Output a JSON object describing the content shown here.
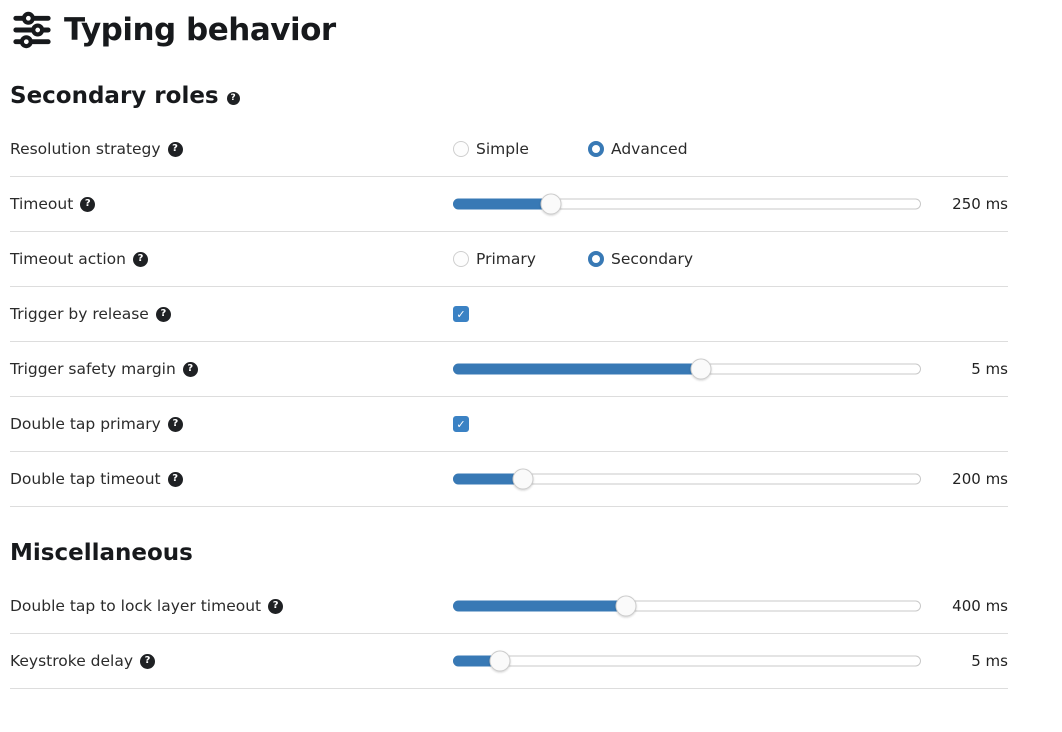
{
  "page": {
    "title": "Typing behavior"
  },
  "icons": {
    "help": "?",
    "checkmark": "✓",
    "title_icon": "sliders-icon"
  },
  "colors": {
    "accent_blue": "#3879b5",
    "badge_dark": "#1f2124",
    "divider": "#dddddd"
  },
  "sections": [
    {
      "title": "Secondary roles",
      "has_help": true,
      "rows": [
        {
          "type": "radio",
          "label": "Resolution strategy",
          "options": [
            {
              "label": "Simple",
              "selected": false
            },
            {
              "label": "Advanced",
              "selected": true
            }
          ]
        },
        {
          "type": "slider",
          "label": "Timeout",
          "value": "250 ms",
          "fill_percent": 21
        },
        {
          "type": "radio",
          "label": "Timeout action",
          "options": [
            {
              "label": "Primary",
              "selected": false
            },
            {
              "label": "Secondary",
              "selected": true
            }
          ]
        },
        {
          "type": "checkbox",
          "label": "Trigger by release",
          "checked": true
        },
        {
          "type": "slider",
          "label": "Trigger safety margin",
          "value": "5 ms",
          "fill_percent": 53
        },
        {
          "type": "checkbox",
          "label": "Double tap primary",
          "checked": true
        },
        {
          "type": "slider",
          "label": "Double tap timeout",
          "value": "200 ms",
          "fill_percent": 15
        }
      ]
    },
    {
      "title": "Miscellaneous",
      "has_help": false,
      "rows": [
        {
          "type": "slider",
          "label": "Double tap to lock layer timeout",
          "value": "400 ms",
          "fill_percent": 37
        },
        {
          "type": "slider",
          "label": "Keystroke delay",
          "value": "5 ms",
          "fill_percent": 10
        }
      ]
    }
  ]
}
